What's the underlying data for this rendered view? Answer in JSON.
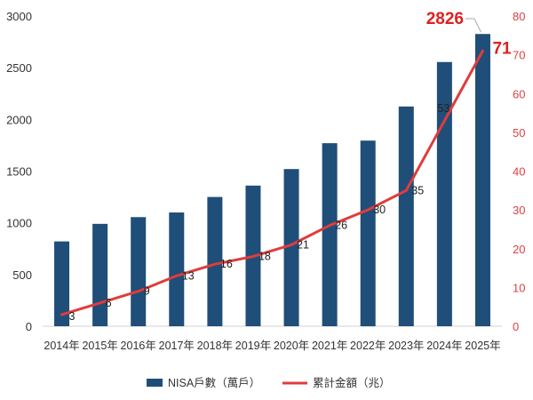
{
  "chart_data": {
    "type": "bar",
    "categories": [
      "2014年",
      "2015年",
      "2016年",
      "2017年",
      "2018年",
      "2019年",
      "2020年",
      "2021年",
      "2022年",
      "2023年",
      "2024年",
      "2025年"
    ],
    "series": [
      {
        "name": "NISA戶數（萬戶）",
        "type": "bar",
        "axis": "left",
        "values": [
          820,
          990,
          1055,
          1100,
          1250,
          1360,
          1520,
          1770,
          1795,
          2125,
          2555,
          2826
        ]
      },
      {
        "name": "累計金額（兆）",
        "type": "line",
        "axis": "right",
        "values": [
          3,
          6,
          9,
          13,
          16,
          18,
          21,
          26,
          30,
          35,
          53,
          71
        ]
      }
    ],
    "line_labels": [
      "3",
      "6",
      "9",
      "13",
      "16",
      "18",
      "21",
      "26",
      "30",
      "35",
      "53",
      "71"
    ],
    "callouts": {
      "bar_last": "2826",
      "line_last": "71"
    },
    "ylim_left": [
      0,
      3000
    ],
    "yticks_left": [
      "0",
      "500",
      "1000",
      "1500",
      "2000",
      "2500",
      "3000"
    ],
    "ylim_right": [
      0,
      80
    ],
    "yticks_right": [
      "0",
      "10",
      "20",
      "30",
      "40",
      "50",
      "60",
      "70",
      "80"
    ],
    "grid": false,
    "legend_position": "bottom",
    "colors": {
      "bar": "#1f4e79",
      "line": "#e03c3c",
      "right_axis_text": "#e04040",
      "callout": "#e02020"
    }
  }
}
